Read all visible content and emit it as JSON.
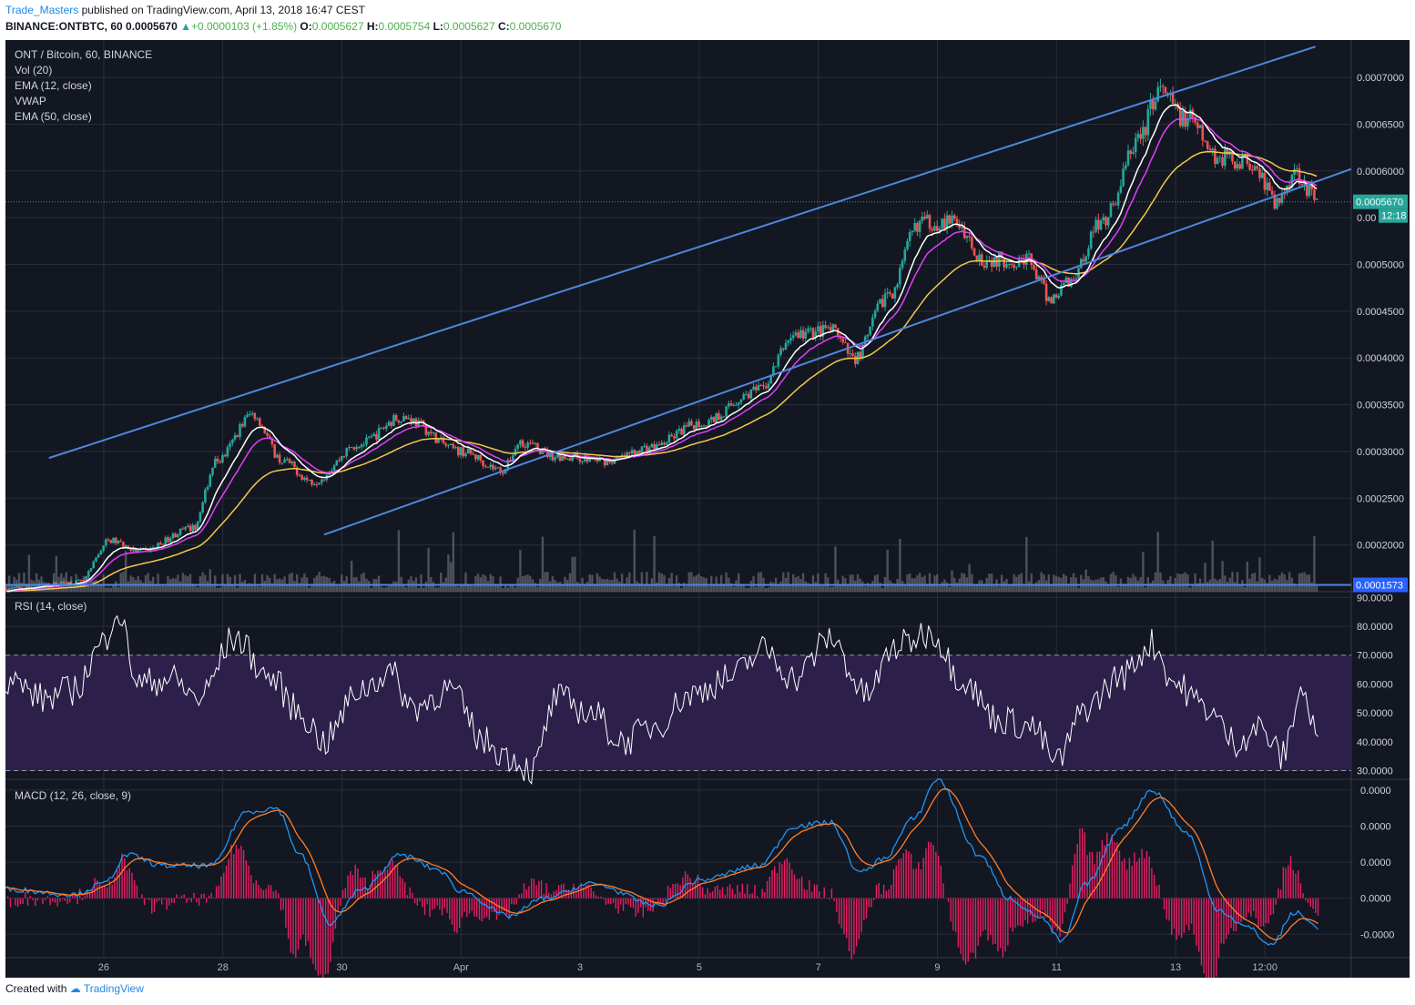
{
  "header": {
    "author": "Trade_Masters",
    "published": "published on TradingView.com, April 13, 2018 16:47 CEST",
    "symbol_line": "BINANCE:ONTBTC, 60",
    "last": "0.0005670",
    "change": "+0.0000103 (+1.85%)",
    "o_label": "O:",
    "o": "0.0005627",
    "h_label": "H:",
    "h": "0.0005754",
    "l_label": "L:",
    "l": "0.0005627",
    "c_label": "C:",
    "c": "0.0005670"
  },
  "footer": {
    "created_with": "Created with",
    "brand": "TradingView"
  },
  "colors": {
    "bg": "#131722",
    "grid": "#2a2e39",
    "up": "#26a69a",
    "down": "#ef5350",
    "channel": "#4f86dd",
    "ema12": "#ffffff",
    "vwap": "#e040fb",
    "ema50": "#f2c94c",
    "rsi": "#ffffff",
    "rsi_band": "#2c1f4a",
    "macd": "#2196f3",
    "signal": "#ff7f2a",
    "hist": "#e91e63"
  },
  "chart_data": [
    {
      "type": "candlestick",
      "title": "ONT / Bitcoin, 60, BINANCE",
      "indicators": [
        "Vol (20)",
        "EMA (12, close)",
        "VWAP",
        "EMA (50, close)"
      ],
      "x_tick_labels": [
        "26",
        "28",
        "30",
        "Apr",
        "3",
        "5",
        "7",
        "9",
        "11",
        "13",
        "12:00"
      ],
      "x_tick_days": [
        1,
        3,
        5,
        7,
        9,
        11,
        13,
        15,
        17,
        19,
        20.5
      ],
      "x_range_days": [
        -0.65,
        21.95
      ],
      "ylim": [
        0.00015,
        0.00074
      ],
      "y_ticks": [
        0.0002,
        0.00025,
        0.0003,
        0.00035,
        0.0004,
        0.00045,
        0.0005,
        0.00055,
        0.0006,
        0.00065,
        0.0007
      ],
      "y_tick_labels": [
        "0.0002000",
        "0.0002500",
        "0.0003000",
        "0.0003500",
        "0.0004000",
        "0.0004500",
        "0.0005000",
        "0.00",
        "0.0006000",
        "0.0006500",
        "0.0007000"
      ],
      "last_price": 0.000567,
      "last_price_label": "0.0005670",
      "countdown": "12:18",
      "support_level": 0.0001573,
      "support_label": "0.0001573",
      "channel_upper": [
        [
          0.08,
          0.000293
        ],
        [
          21.35,
          0.000733
        ]
      ],
      "channel_lower": [
        [
          4.7,
          0.000211
        ],
        [
          21.95,
          0.000602
        ]
      ],
      "anchors": [
        [
          -0.65,
          0.000153
        ],
        [
          0.6,
          0.00016
        ],
        [
          1.1,
          0.000205
        ],
        [
          1.6,
          0.000193
        ],
        [
          2.5,
          0.000218
        ],
        [
          2.9,
          0.00029
        ],
        [
          3.5,
          0.00034
        ],
        [
          4.0,
          0.00029
        ],
        [
          4.5,
          0.000268
        ],
        [
          5.3,
          0.000308
        ],
        [
          6.0,
          0.000337
        ],
        [
          7.0,
          0.0003
        ],
        [
          7.7,
          0.00028
        ],
        [
          8.0,
          0.00031
        ],
        [
          8.6,
          0.000295
        ],
        [
          9.5,
          0.00029
        ],
        [
          10.2,
          0.000305
        ],
        [
          11.0,
          0.00033
        ],
        [
          12.0,
          0.000365
        ],
        [
          12.6,
          0.000425
        ],
        [
          13.2,
          0.00043
        ],
        [
          13.6,
          0.0004
        ],
        [
          14.2,
          0.00047
        ],
        [
          14.7,
          0.000545
        ],
        [
          15.3,
          0.000545
        ],
        [
          15.8,
          0.000505
        ],
        [
          16.5,
          0.000505
        ],
        [
          16.9,
          0.000463
        ],
        [
          17.2,
          0.000483
        ],
        [
          17.8,
          0.00055
        ],
        [
          18.4,
          0.000635
        ],
        [
          18.7,
          0.000685
        ],
        [
          19.2,
          0.000655
        ],
        [
          19.7,
          0.000615
        ],
        [
          20.3,
          0.00061
        ],
        [
          20.7,
          0.000565
        ],
        [
          21.0,
          0.0006
        ],
        [
          21.4,
          0.000567
        ]
      ]
    },
    {
      "type": "line",
      "title": "RSI (14, close)",
      "ylim": [
        27,
        92
      ],
      "levels": [
        30,
        70
      ],
      "y_ticks": [
        30,
        40,
        50,
        60,
        70,
        80,
        90
      ],
      "y_tick_labels": [
        "30.0000",
        "40.0000",
        "50.0000",
        "60.0000",
        "70.0000",
        "80.0000",
        "90.0000"
      ],
      "anchors": [
        [
          -0.65,
          62
        ],
        [
          0.0,
          55
        ],
        [
          0.5,
          58
        ],
        [
          1.0,
          74
        ],
        [
          1.2,
          86
        ],
        [
          1.6,
          60
        ],
        [
          2.1,
          62
        ],
        [
          2.6,
          55
        ],
        [
          3.2,
          76
        ],
        [
          3.8,
          62
        ],
        [
          4.3,
          50
        ],
        [
          4.7,
          40
        ],
        [
          5.3,
          58
        ],
        [
          5.8,
          64
        ],
        [
          6.2,
          52
        ],
        [
          6.8,
          58
        ],
        [
          7.4,
          40
        ],
        [
          7.8,
          35
        ],
        [
          8.2,
          30
        ],
        [
          8.6,
          55
        ],
        [
          9.2,
          50
        ],
        [
          9.7,
          40
        ],
        [
          10.3,
          46
        ],
        [
          10.8,
          56
        ],
        [
          11.5,
          62
        ],
        [
          12.1,
          72
        ],
        [
          12.6,
          62
        ],
        [
          13.2,
          76
        ],
        [
          13.8,
          56
        ],
        [
          14.3,
          73
        ],
        [
          14.9,
          78
        ],
        [
          15.4,
          62
        ],
        [
          16.0,
          48
        ],
        [
          16.6,
          45
        ],
        [
          17.0,
          33
        ],
        [
          17.5,
          52
        ],
        [
          18.1,
          63
        ],
        [
          18.6,
          74
        ],
        [
          19.0,
          60
        ],
        [
          19.5,
          52
        ],
        [
          20.0,
          40
        ],
        [
          20.4,
          45
        ],
        [
          20.8,
          35
        ],
        [
          21.1,
          58
        ],
        [
          21.4,
          42
        ]
      ]
    },
    {
      "type": "line",
      "title": "MACD (12, 26, close, 9)",
      "series": [
        "MACD",
        "signal",
        "histogram"
      ],
      "ylim": [
        -1.65e-05,
        3.3e-05
      ],
      "y_ticks": [
        -1e-05,
        0.0,
        1e-05,
        2e-05,
        3e-05
      ],
      "y_tick_labels": [
        "-0.0000",
        "0.0000",
        "0.0000",
        "0.0000",
        "0.0000"
      ],
      "anchors": [
        [
          -0.65,
          2.5e-06
        ],
        [
          0.5,
          1e-06
        ],
        [
          1.0,
          4e-06
        ],
        [
          1.4,
          1.2e-05
        ],
        [
          2.0,
          9e-06
        ],
        [
          2.8,
          9e-06
        ],
        [
          3.4,
          2.4e-05
        ],
        [
          3.9,
          2.5e-05
        ],
        [
          4.3,
          1.2e-05
        ],
        [
          4.8,
          -7e-06
        ],
        [
          5.3,
          2e-06
        ],
        [
          6.0,
          1.2e-05
        ],
        [
          6.6,
          8e-06
        ],
        [
          7.0,
          2e-06
        ],
        [
          7.8,
          -5e-06
        ],
        [
          8.4,
          0.0
        ],
        [
          9.2,
          4e-06
        ],
        [
          10.3,
          -2e-06
        ],
        [
          11.0,
          5e-06
        ],
        [
          12.0,
          9e-06
        ],
        [
          12.6,
          2e-05
        ],
        [
          13.2,
          2.1e-05
        ],
        [
          13.7,
          7e-06
        ],
        [
          14.1,
          1.1e-05
        ],
        [
          14.6,
          2.2e-05
        ],
        [
          15.0,
          3.3e-05
        ],
        [
          15.7,
          1.2e-05
        ],
        [
          16.2,
          0.0
        ],
        [
          16.7,
          -5e-06
        ],
        [
          17.1,
          -1.2e-05
        ],
        [
          17.5,
          4e-06
        ],
        [
          18.1,
          2e-05
        ],
        [
          18.6,
          3e-05
        ],
        [
          19.2,
          1.8e-05
        ],
        [
          19.7,
          -3e-06
        ],
        [
          20.2,
          -8e-06
        ],
        [
          20.6,
          -1.3e-05
        ],
        [
          21.0,
          -4e-06
        ],
        [
          21.4,
          -8e-06
        ]
      ]
    }
  ]
}
